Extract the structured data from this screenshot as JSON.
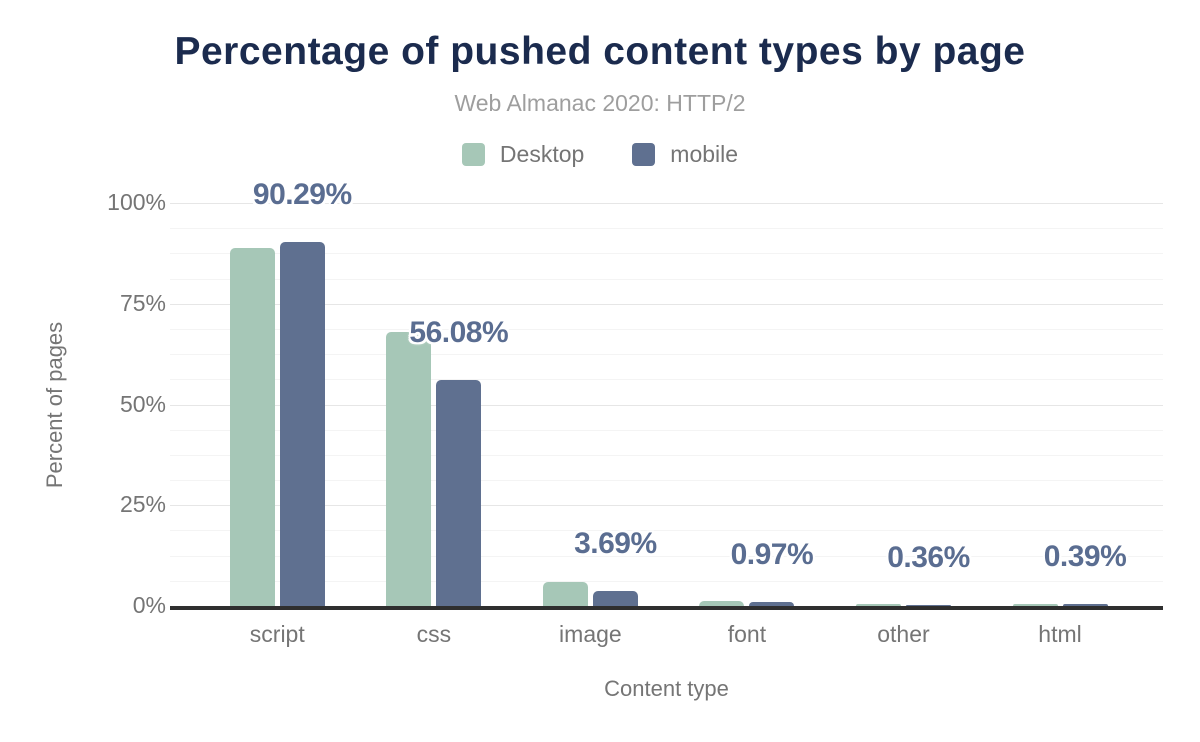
{
  "figure": {
    "title": "Percentage of pushed content types by page",
    "subtitle": "Web Almanac 2020: HTTP/2"
  },
  "legend": {
    "items": [
      {
        "label": "Desktop",
        "color": "#a6c7b7"
      },
      {
        "label": "mobile",
        "color": "#5f7090"
      }
    ]
  },
  "chart_data": {
    "type": "bar",
    "title": "Percentage of pushed content types by page",
    "subtitle": "Web Almanac 2020: HTTP/2",
    "categories": [
      "script",
      "css",
      "image",
      "font",
      "other",
      "html"
    ],
    "series": [
      {
        "name": "Desktop",
        "color": "#a6c7b7",
        "values": [
          88.8,
          68.0,
          6.0,
          1.2,
          0.6,
          0.5
        ]
      },
      {
        "name": "mobile",
        "color": "#5f7090",
        "values": [
          90.29,
          56.08,
          3.69,
          0.97,
          0.36,
          0.39
        ]
      }
    ],
    "data_labels": {
      "attached_to_series": "mobile",
      "values": [
        "90.29%",
        "56.08%",
        "3.69%",
        "0.97%",
        "0.36%",
        "0.39%"
      ]
    },
    "xlabel": "Content type",
    "ylabel": "Percent of pages",
    "yticks": [
      {
        "label": "0%",
        "value": 0
      },
      {
        "label": "25%",
        "value": 25
      },
      {
        "label": "50%",
        "value": 50
      },
      {
        "label": "75%",
        "value": 75
      },
      {
        "label": "100%",
        "value": 100
      }
    ],
    "ylim": [
      0,
      100
    ],
    "grid": {
      "orientation": "horizontal",
      "major_step": 25,
      "minor_step": 6.25
    },
    "legend_position": "top-center"
  },
  "colors": {
    "background": "#ffffff",
    "title": "#1b2b4e",
    "subtitle": "#9e9e9e",
    "axis_text": "#757575",
    "value_label": "#5a6d91",
    "axis_line": "#2f2f2f",
    "gridline_major": "#e6e6e6",
    "gridline_minor": "#f4f4f4",
    "desktop_bar": "#a6c7b7",
    "mobile_bar": "#5f7090"
  }
}
